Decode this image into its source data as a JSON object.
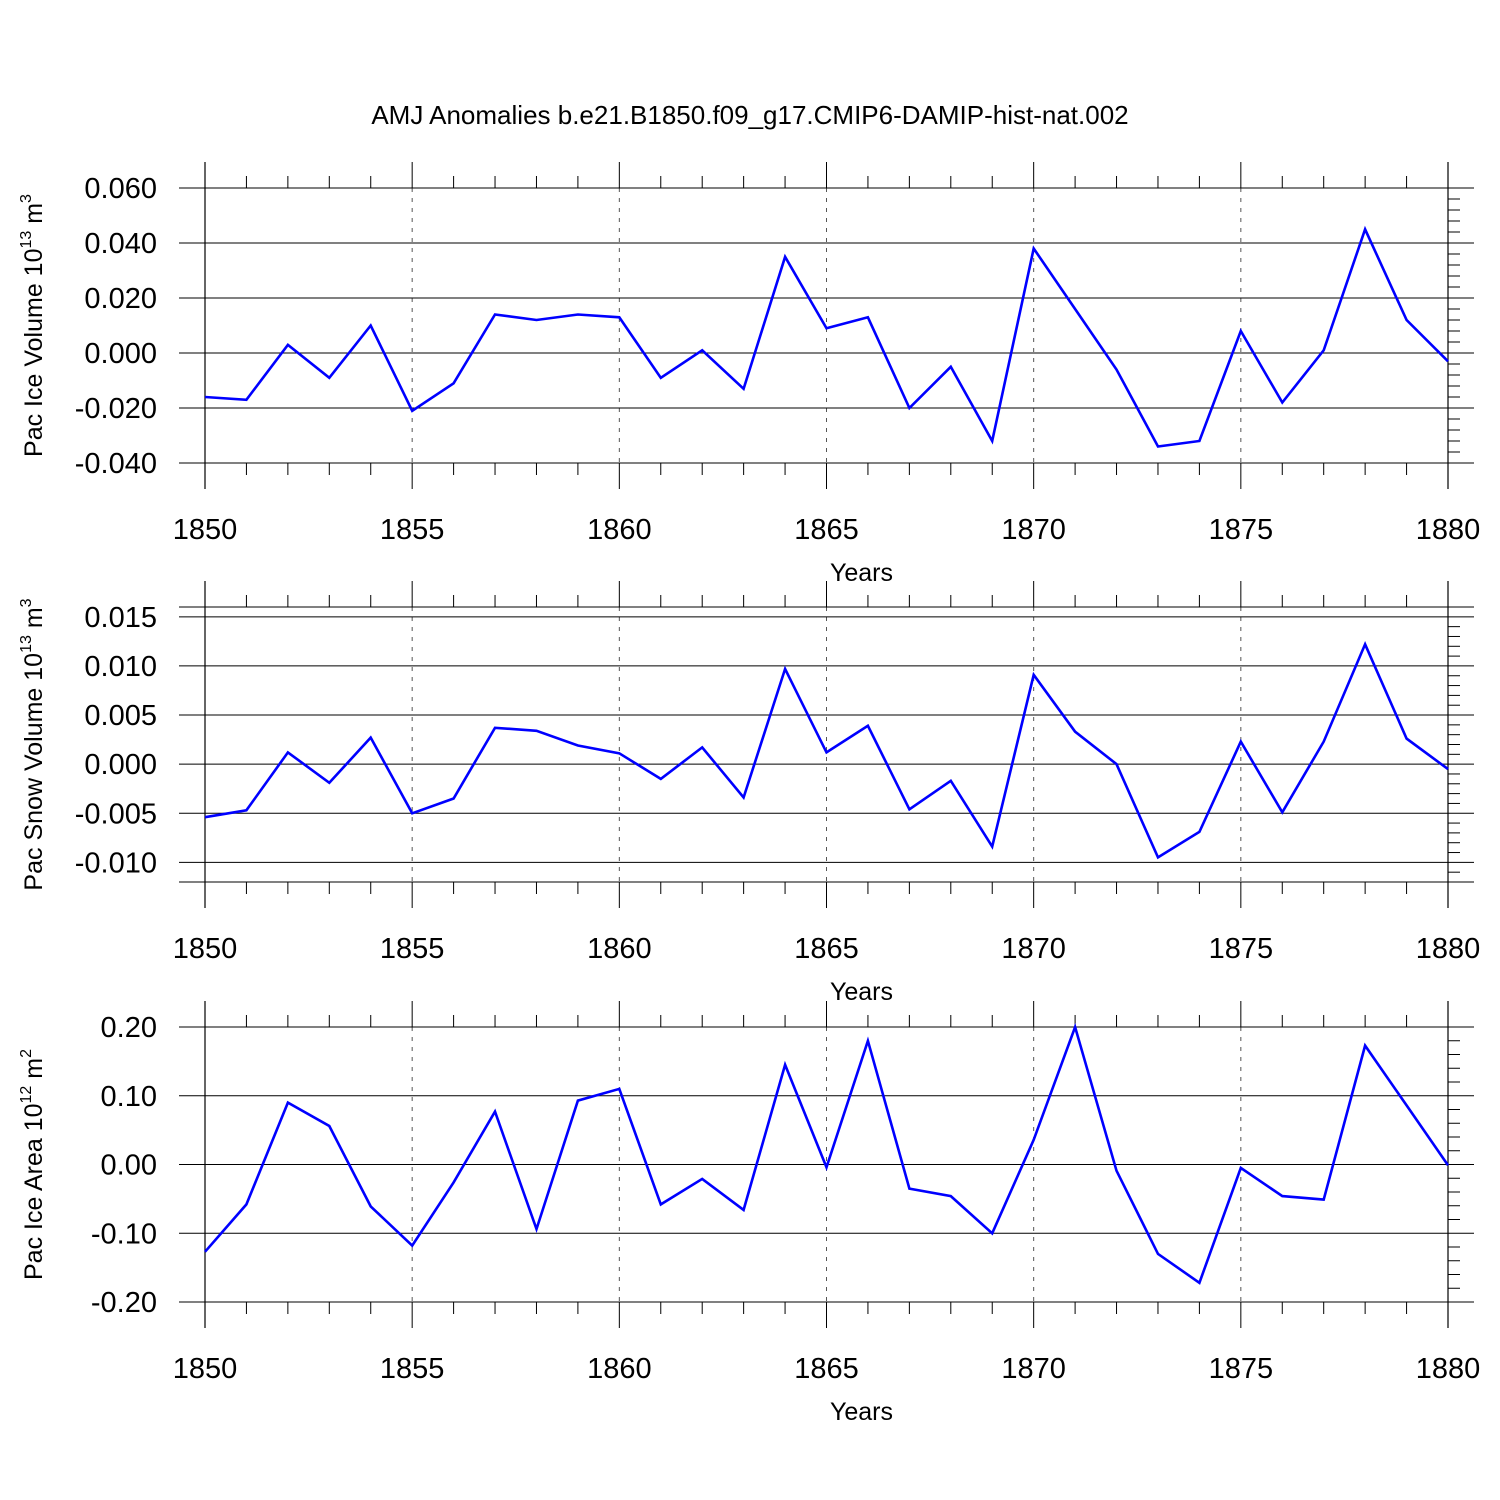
{
  "figure": {
    "title": "AMJ Anomalies b.e21.B1850.f09_g17.CMIP6-DAMIP-hist-nat.002"
  },
  "style": {
    "line_color": "#0000ff",
    "axis_color": "#000000",
    "grid_color": "#555555"
  },
  "chart_data": [
    {
      "type": "line",
      "xlabel": "Years",
      "ylabel_prefix": "Pac Ice Volume 10",
      "ylabel_exp": "13",
      "ylabel_unit": " m",
      "ylabel_unit_exp": "3",
      "xlim": [
        1850,
        1880
      ],
      "ylim": [
        -0.04,
        0.06
      ],
      "yticks": [
        "-0.040",
        "-0.020",
        "0.000",
        "0.020",
        "0.040",
        "0.060"
      ],
      "xticks": [
        "1850",
        "1855",
        "1860",
        "1865",
        "1870",
        "1875",
        "1880"
      ],
      "grid": "vertical dashed at major x ticks",
      "x": [
        1850,
        1851,
        1852,
        1853,
        1854,
        1855,
        1856,
        1857,
        1858,
        1859,
        1860,
        1861,
        1862,
        1863,
        1864,
        1865,
        1866,
        1867,
        1868,
        1869,
        1870,
        1871,
        1872,
        1873,
        1874,
        1875,
        1876,
        1877,
        1878,
        1879,
        1880
      ],
      "values": [
        -0.016,
        -0.017,
        0.003,
        -0.009,
        0.01,
        -0.021,
        -0.011,
        0.014,
        0.012,
        0.014,
        0.013,
        -0.009,
        0.001,
        -0.013,
        0.035,
        0.009,
        0.013,
        -0.02,
        -0.005,
        -0.032,
        0.038,
        0.016,
        -0.006,
        -0.034,
        -0.032,
        0.008,
        -0.018,
        0.001,
        0.045,
        0.012,
        -0.003
      ]
    },
    {
      "type": "line",
      "xlabel": "Years",
      "ylabel_prefix": "Pac Snow Volume 10",
      "ylabel_exp": "13",
      "ylabel_unit": " m",
      "ylabel_unit_exp": "3",
      "xlim": [
        1850,
        1880
      ],
      "ylim": [
        -0.012,
        0.016
      ],
      "yticks": [
        "-0.010",
        "-0.005",
        "0.000",
        "0.005",
        "0.010",
        "0.015"
      ],
      "xticks": [
        "1850",
        "1855",
        "1860",
        "1865",
        "1870",
        "1875",
        "1880"
      ],
      "grid": "vertical dashed at major x ticks",
      "x": [
        1850,
        1851,
        1852,
        1853,
        1854,
        1855,
        1856,
        1857,
        1858,
        1859,
        1860,
        1861,
        1862,
        1863,
        1864,
        1865,
        1866,
        1867,
        1868,
        1869,
        1870,
        1871,
        1872,
        1873,
        1874,
        1875,
        1876,
        1877,
        1878,
        1879,
        1880
      ],
      "values": [
        -0.0054,
        -0.0047,
        0.0012,
        -0.0019,
        0.0027,
        -0.005,
        -0.0035,
        0.0037,
        0.0034,
        0.0019,
        0.0011,
        -0.0015,
        0.0017,
        -0.0034,
        0.0097,
        0.0012,
        0.0039,
        -0.0046,
        -0.0017,
        -0.0084,
        0.0091,
        0.0033,
        0.0,
        -0.0095,
        -0.0069,
        0.0023,
        -0.0049,
        0.0023,
        0.0122,
        0.0026,
        -0.0005
      ]
    },
    {
      "type": "line",
      "xlabel": "Years",
      "ylabel_prefix": "Pac Ice Area 10",
      "ylabel_exp": "12",
      "ylabel_unit": " m",
      "ylabel_unit_exp": "2",
      "xlim": [
        1850,
        1880
      ],
      "ylim": [
        -0.2,
        0.2
      ],
      "yticks": [
        "-0.20",
        "-0.10",
        "0.00",
        "0.10",
        "0.20"
      ],
      "xticks": [
        "1850",
        "1855",
        "1860",
        "1865",
        "1870",
        "1875",
        "1880"
      ],
      "grid": "vertical dashed at major x ticks",
      "x": [
        1850,
        1851,
        1852,
        1853,
        1854,
        1855,
        1856,
        1857,
        1858,
        1859,
        1860,
        1861,
        1862,
        1863,
        1864,
        1865,
        1866,
        1867,
        1868,
        1869,
        1870,
        1871,
        1872,
        1873,
        1874,
        1875,
        1876,
        1877,
        1878,
        1879,
        1880
      ],
      "values": [
        -0.127,
        -0.058,
        0.09,
        0.056,
        -0.061,
        -0.118,
        -0.026,
        0.077,
        -0.094,
        0.093,
        0.11,
        -0.058,
        -0.021,
        -0.066,
        0.145,
        -0.004,
        0.18,
        -0.035,
        -0.046,
        -0.1,
        0.036,
        0.2,
        -0.009,
        -0.13,
        -0.172,
        -0.005,
        -0.046,
        -0.051,
        0.173,
        0.086,
        -0.001
      ]
    }
  ]
}
